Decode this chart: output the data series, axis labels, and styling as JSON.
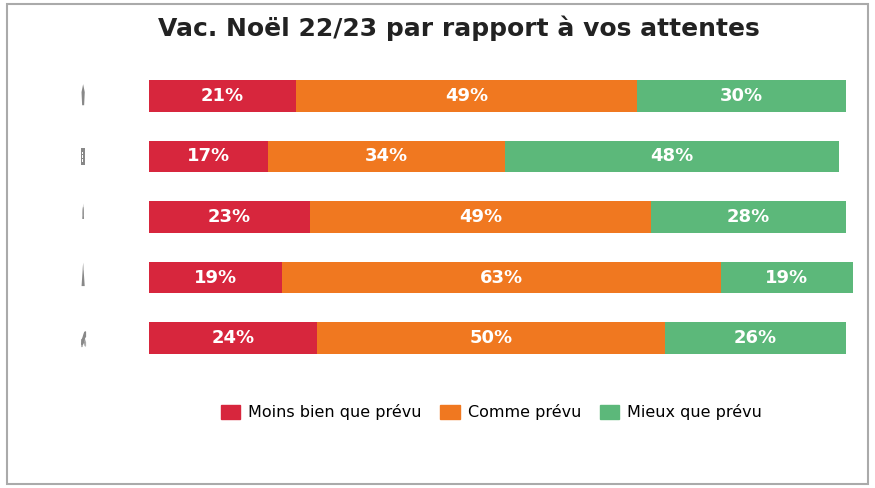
{
  "title": "Vac. Noël 22/23 par rapport à vos attentes",
  "moins_bien": [
    21,
    17,
    23,
    19,
    24
  ],
  "comme_prevu": [
    49,
    34,
    49,
    63,
    50
  ],
  "mieux_que": [
    30,
    48,
    28,
    19,
    26
  ],
  "color_moins": "#d7263d",
  "color_comme": "#f07820",
  "color_mieux": "#5cb87a",
  "legend_labels": [
    "Moins bien que prévu",
    "Comme prévu",
    "Mieux que prévu"
  ],
  "bar_height": 0.52,
  "background": "#ffffff",
  "title_fontsize": 18,
  "label_fontsize": 13
}
